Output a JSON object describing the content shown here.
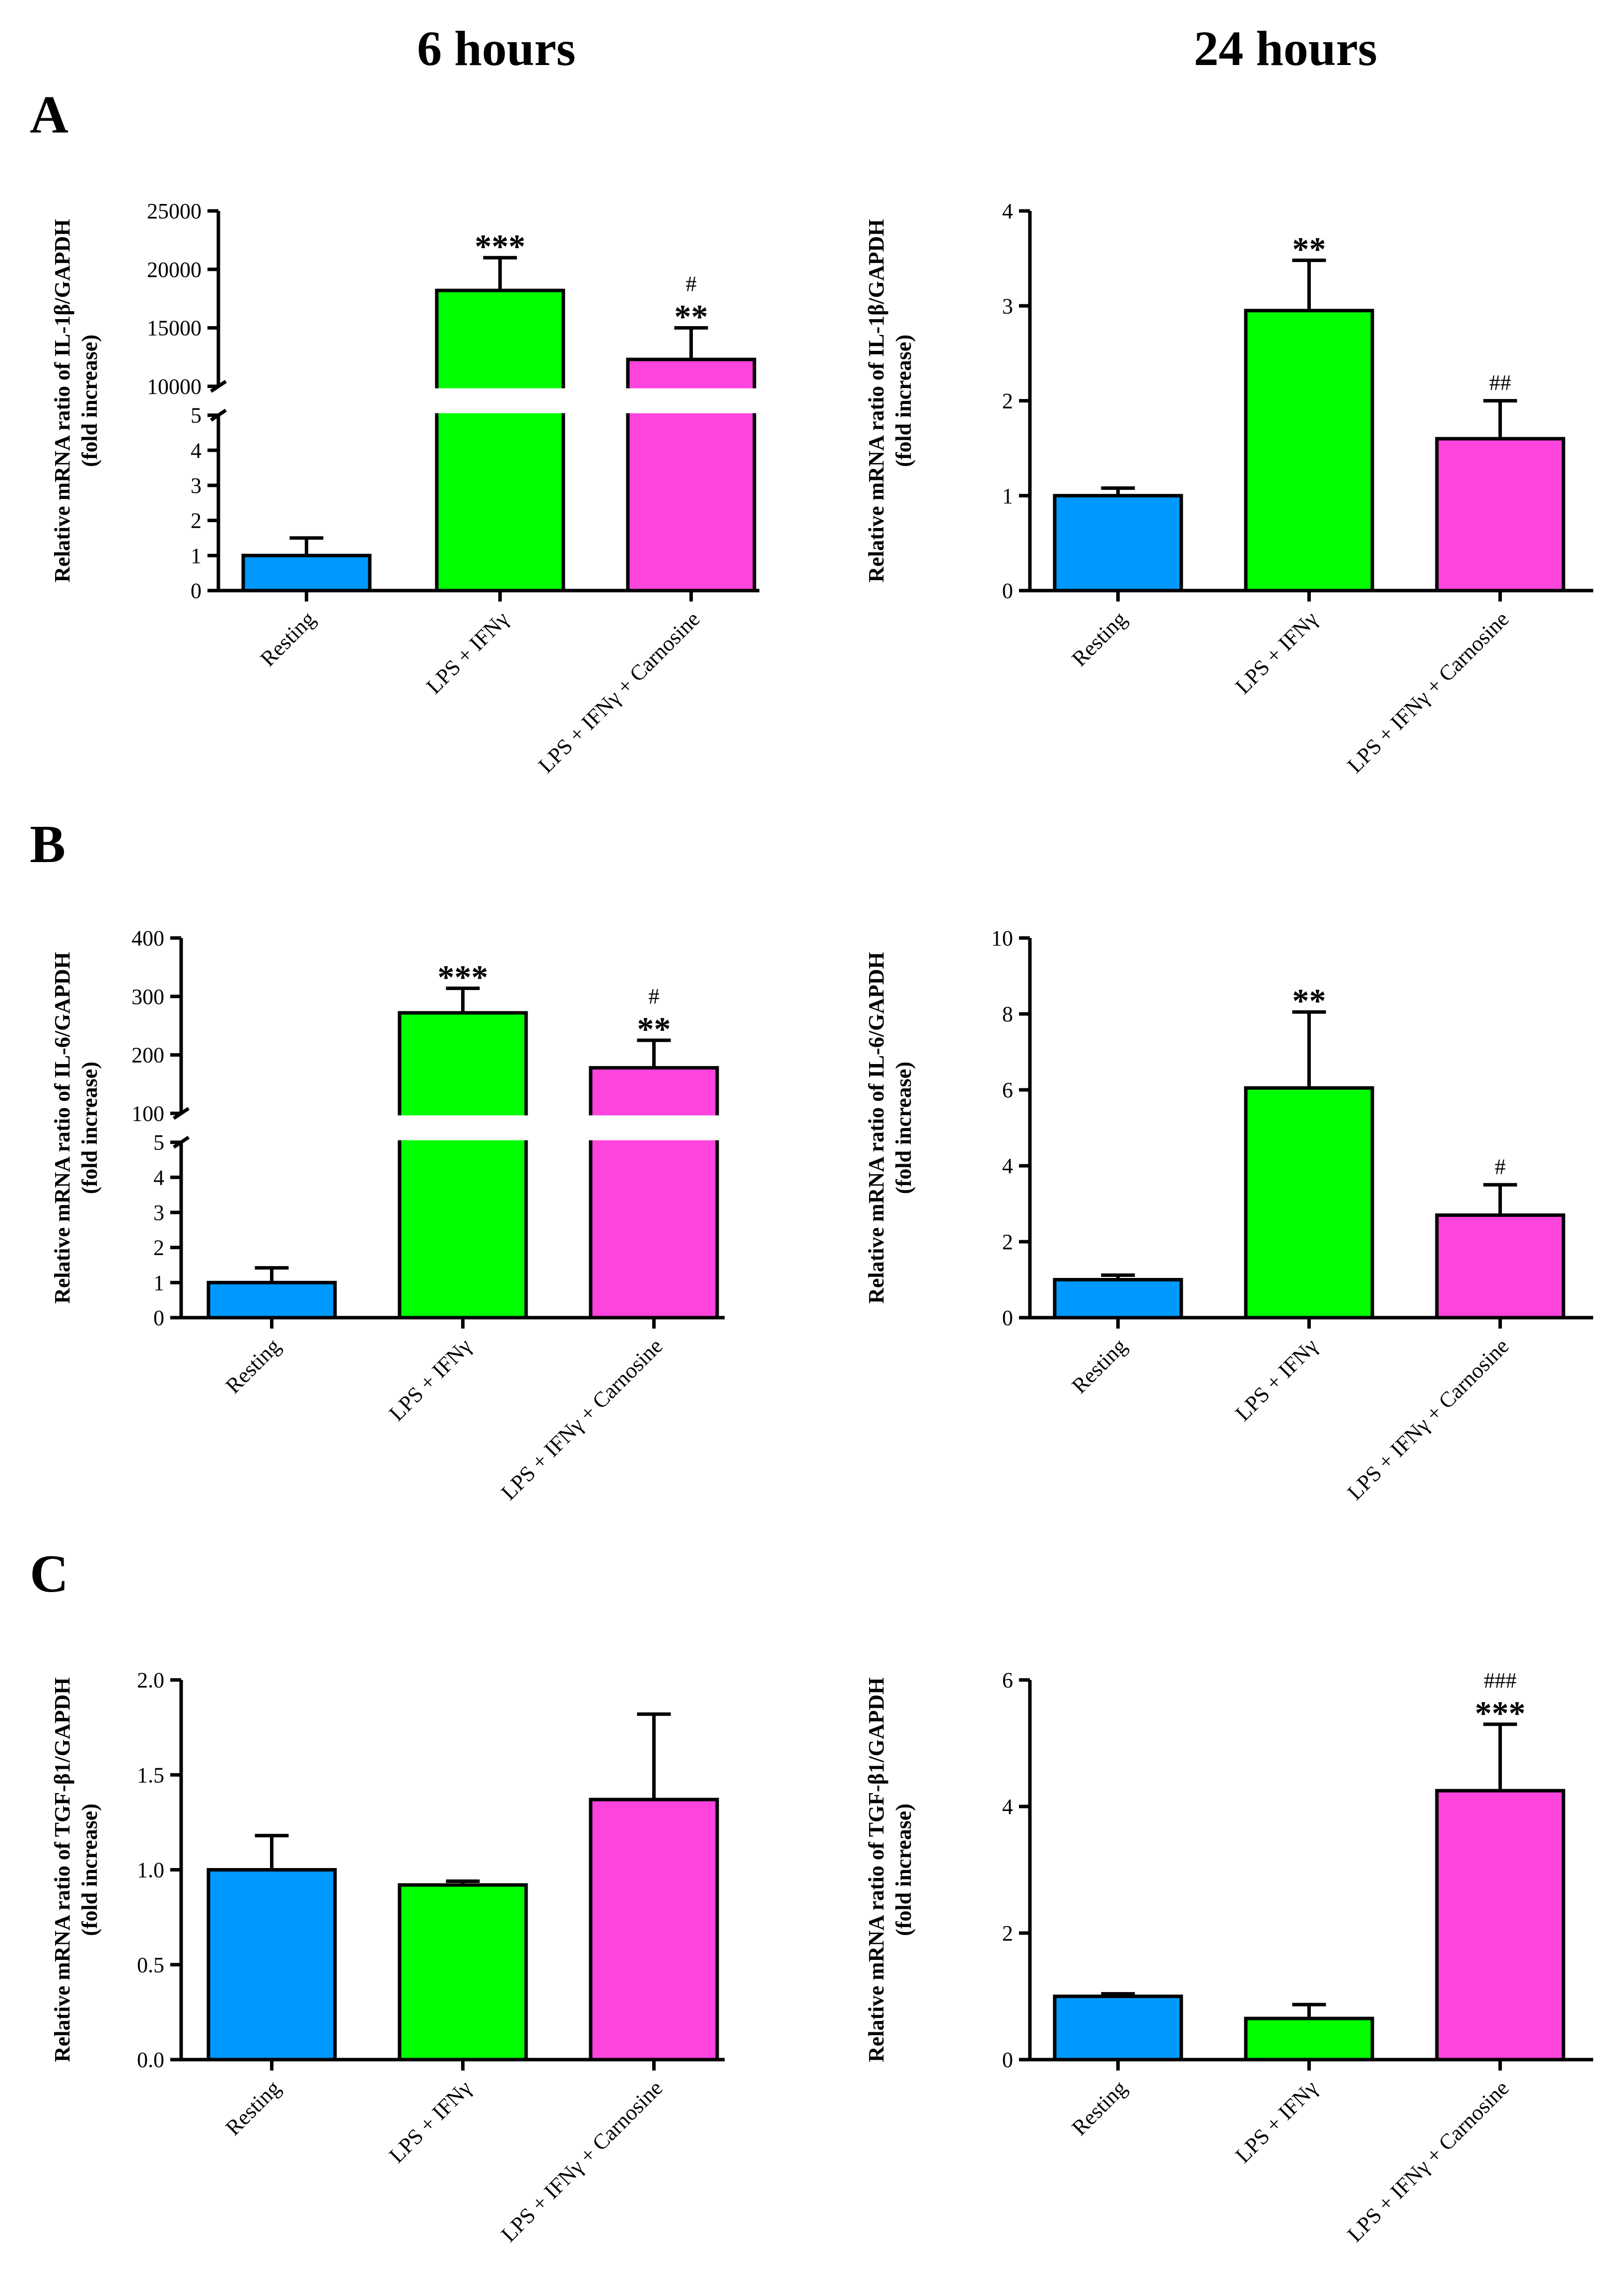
{
  "figure": {
    "col_titles": [
      "6 hours",
      "24 hours"
    ],
    "panel_letters": [
      "A",
      "B",
      "C"
    ],
    "categories": [
      "Resting",
      "LPS + IFNγ",
      "LPS + IFNγ + Carnosine"
    ],
    "colors": [
      "#0099ff",
      "#00ff00",
      "#ff44dd"
    ]
  },
  "chart_data": [
    {
      "type": "bar",
      "panel": "A",
      "time": "6 hours",
      "ylabel": [
        "Relative mRNA ratio of IL-1β/GAPDH",
        "(fold increase)"
      ],
      "categories": [
        "Resting",
        "LPS + IFNγ",
        "LPS + IFNγ + Carnosine"
      ],
      "values": [
        1.0,
        18200,
        12300
      ],
      "errors": [
        0.5,
        2800,
        2700
      ],
      "significance": [
        [],
        [
          "***"
        ],
        [
          "#",
          "**"
        ]
      ],
      "broken_axis": true,
      "lower_range": [
        0,
        5
      ],
      "lower_ticks": [
        "0",
        "1",
        "2",
        "3",
        "4",
        "5"
      ],
      "upper_range": [
        10000,
        25000
      ],
      "upper_ticks": [
        "10000",
        "15000",
        "20000",
        "25000"
      ]
    },
    {
      "type": "bar",
      "panel": "A",
      "time": "24 hours",
      "ylabel": [
        "Relative mRNA ratio of IL-1β/GAPDH",
        "(fold increase)"
      ],
      "categories": [
        "Resting",
        "LPS + IFNγ",
        "LPS + IFNγ + Carnosine"
      ],
      "values": [
        1.0,
        2.95,
        1.6
      ],
      "errors": [
        0.08,
        0.53,
        0.4
      ],
      "significance": [
        [],
        [
          "**"
        ],
        [
          "##"
        ]
      ],
      "broken_axis": false,
      "ylim": [
        0,
        4
      ],
      "ticks": [
        "0",
        "1",
        "2",
        "3",
        "4"
      ]
    },
    {
      "type": "bar",
      "panel": "B",
      "time": "6 hours",
      "ylabel": [
        "Relative mRNA ratio of IL-6/GAPDH",
        "(fold increase)"
      ],
      "categories": [
        "Resting",
        "LPS + IFNγ",
        "LPS + IFNγ + Carnosine"
      ],
      "values": [
        1.0,
        272,
        178
      ],
      "errors": [
        0.42,
        42,
        47
      ],
      "significance": [
        [],
        [
          "***"
        ],
        [
          "#",
          "**"
        ]
      ],
      "broken_axis": true,
      "lower_range": [
        0,
        5
      ],
      "lower_ticks": [
        "0",
        "1",
        "2",
        "3",
        "4",
        "5"
      ],
      "upper_range": [
        100,
        400
      ],
      "upper_ticks": [
        "100",
        "200",
        "300",
        "400"
      ]
    },
    {
      "type": "bar",
      "panel": "B",
      "time": "24 hours",
      "ylabel": [
        "Relative mRNA ratio of IL-6/GAPDH",
        "(fold increase)"
      ],
      "categories": [
        "Resting",
        "LPS + IFNγ",
        "LPS + IFNγ + Carnosine"
      ],
      "values": [
        1.0,
        6.05,
        2.7
      ],
      "errors": [
        0.12,
        2.0,
        0.8
      ],
      "significance": [
        [],
        [
          "**"
        ],
        [
          "#"
        ]
      ],
      "broken_axis": false,
      "ylim": [
        0,
        10
      ],
      "ticks": [
        "0",
        "2",
        "4",
        "6",
        "8",
        "10"
      ]
    },
    {
      "type": "bar",
      "panel": "C",
      "time": "6 hours",
      "ylabel": [
        "Relative mRNA ratio of TGF-β1/GAPDH",
        "(fold increase)"
      ],
      "categories": [
        "Resting",
        "LPS + IFNγ",
        "LPS + IFNγ + Carnosine"
      ],
      "values": [
        1.0,
        0.92,
        1.37
      ],
      "errors": [
        0.18,
        0.02,
        0.45
      ],
      "significance": [
        [],
        [],
        []
      ],
      "broken_axis": false,
      "ylim": [
        0,
        2
      ],
      "ticks": [
        "0.0",
        "0.5",
        "1.0",
        "1.5",
        "2.0"
      ]
    },
    {
      "type": "bar",
      "panel": "C",
      "time": "24 hours",
      "ylabel": [
        "Relative mRNA ratio of TGF-β1/GAPDH",
        "(fold increase)"
      ],
      "categories": [
        "Resting",
        "LPS + IFNγ",
        "LPS + IFNγ + Carnosine"
      ],
      "values": [
        1.0,
        0.65,
        4.25
      ],
      "errors": [
        0.04,
        0.22,
        1.05
      ],
      "significance": [
        [],
        [],
        [
          "###",
          "***"
        ]
      ],
      "broken_axis": false,
      "ylim": [
        0,
        6
      ],
      "ticks": [
        "0",
        "2",
        "4",
        "6"
      ]
    }
  ]
}
